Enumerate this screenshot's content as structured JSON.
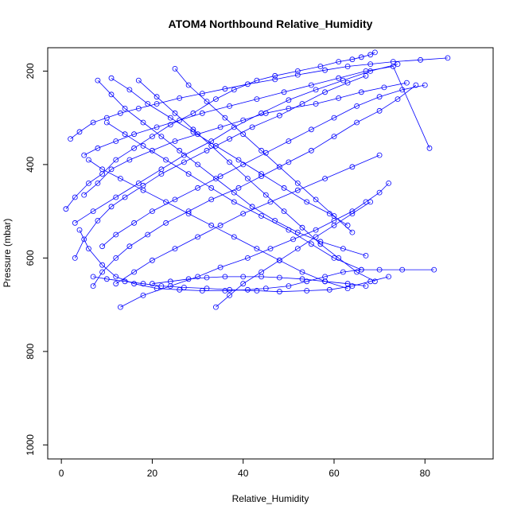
{
  "chart_data": {
    "type": "line",
    "title": "ATOM4 Northbound Relative_Humidity",
    "xlabel": "Relative_Humidity",
    "ylabel": "Pressure (mbar)",
    "xlim": [
      -3,
      95
    ],
    "ylim": [
      1030,
      150
    ],
    "y_reversed": true,
    "x_ticks": [
      0,
      20,
      40,
      60,
      80
    ],
    "y_ticks": [
      200,
      400,
      600,
      800,
      1000
    ],
    "grid": false,
    "legend": "none",
    "marker": "open-circle",
    "series_color": "#0000ff",
    "series": [
      {
        "x": [
          1,
          3,
          6,
          9,
          12,
          16,
          20,
          24,
          29,
          34,
          38,
          43,
          47,
          52,
          57,
          61,
          64,
          66,
          68,
          69
        ],
        "y": [
          495,
          470,
          440,
          420,
          390,
          365,
          340,
          315,
          290,
          260,
          240,
          220,
          210,
          200,
          190,
          180,
          175,
          170,
          165,
          160
        ]
      },
      {
        "x": [
          3,
          5,
          8,
          11,
          14,
          18,
          22,
          27,
          32,
          37,
          42,
          48,
          53,
          58,
          63,
          67
        ],
        "y": [
          600,
          560,
          520,
          490,
          470,
          445,
          420,
          395,
          370,
          345,
          320,
          295,
          270,
          245,
          225,
          210
        ]
      },
      {
        "x": [
          7,
          9,
          12,
          15,
          19,
          23,
          28,
          33,
          39,
          44,
          50,
          55,
          60,
          65,
          70,
          74,
          78
        ],
        "y": [
          660,
          630,
          600,
          575,
          550,
          525,
          500,
          475,
          450,
          425,
          395,
          370,
          340,
          310,
          285,
          260,
          230
        ]
      },
      {
        "x": [
          13,
          18,
          24,
          30,
          35,
          41,
          46,
          51,
          56,
          60,
          64,
          67,
          70,
          72
        ],
        "y": [
          705,
          680,
          660,
          640,
          620,
          600,
          580,
          560,
          540,
          520,
          500,
          480,
          460,
          440
        ]
      },
      {
        "x": [
          2,
          4,
          7,
          10,
          13,
          17,
          21,
          26,
          31,
          36,
          41,
          47,
          52,
          58,
          63,
          68,
          73,
          79,
          85
        ],
        "y": [
          345,
          330,
          310,
          300,
          290,
          280,
          270,
          258,
          248,
          238,
          228,
          218,
          208,
          198,
          190,
          185,
          180,
          176,
          172
        ]
      },
      {
        "x": [
          5,
          8,
          11,
          15,
          20,
          25,
          30,
          35,
          40,
          45,
          50,
          56,
          61,
          66,
          71,
          76
        ],
        "y": [
          465,
          440,
          410,
          390,
          370,
          350,
          335,
          320,
          305,
          290,
          280,
          270,
          258,
          245,
          235,
          225
        ]
      },
      {
        "x": [
          4,
          6,
          9,
          12,
          16,
          21,
          26,
          31,
          36,
          41,
          45,
          50,
          54,
          58,
          62,
          66,
          70,
          75,
          82
        ],
        "y": [
          540,
          580,
          615,
          640,
          655,
          665,
          668,
          670,
          670,
          668,
          665,
          660,
          650,
          640,
          630,
          625,
          625,
          625,
          625
        ]
      },
      {
        "x": [
          7,
          10,
          14,
          18,
          22,
          27,
          32,
          37,
          43,
          48,
          54,
          59,
          64,
          68,
          72
        ],
        "y": [
          640,
          645,
          650,
          655,
          660,
          663,
          665,
          668,
          670,
          672,
          670,
          668,
          660,
          650,
          640
        ]
      },
      {
        "x": [
          8,
          11,
          14,
          18,
          22,
          26,
          30,
          34,
          38,
          42,
          47,
          52,
          57,
          62,
          67
        ],
        "y": [
          220,
          250,
          280,
          310,
          340,
          370,
          400,
          430,
          460,
          490,
          520,
          545,
          565,
          580,
          595
        ]
      },
      {
        "x": [
          11,
          15,
          19,
          24,
          29,
          34,
          39,
          44,
          49,
          54,
          59,
          63
        ],
        "y": [
          215,
          240,
          270,
          300,
          330,
          360,
          390,
          420,
          450,
          480,
          505,
          530
        ]
      },
      {
        "x": [
          17,
          21,
          25,
          29,
          33,
          37,
          41,
          45,
          49,
          53,
          57,
          61,
          65,
          69
        ],
        "y": [
          220,
          255,
          290,
          325,
          360,
          395,
          430,
          465,
          500,
          535,
          570,
          600,
          630,
          650
        ]
      },
      {
        "x": [
          6,
          9,
          13,
          18,
          23,
          28,
          33,
          38,
          43,
          48,
          53,
          58,
          63
        ],
        "y": [
          390,
          410,
          430,
          455,
          480,
          505,
          530,
          555,
          580,
          605,
          630,
          650,
          665
        ]
      },
      {
        "x": [
          10,
          14,
          18,
          23,
          28,
          33,
          38,
          44,
          50,
          55,
          60,
          66
        ],
        "y": [
          310,
          335,
          360,
          390,
          420,
          450,
          480,
          510,
          540,
          570,
          600,
          625
        ]
      },
      {
        "x": [
          3,
          7,
          12,
          17,
          22,
          27,
          33,
          38,
          44,
          50,
          56,
          62,
          68,
          74
        ],
        "y": [
          525,
          500,
          470,
          440,
          410,
          380,
          350,
          320,
          290,
          262,
          240,
          220,
          200,
          185
        ]
      },
      {
        "x": [
          25,
          28,
          32,
          36,
          40,
          44,
          48,
          52,
          56,
          60,
          64
        ],
        "y": [
          195,
          230,
          265,
          300,
          335,
          370,
          405,
          440,
          475,
          510,
          545
        ]
      },
      {
        "x": [
          34,
          37,
          40,
          44,
          48,
          52,
          56,
          60,
          64,
          68
        ],
        "y": [
          705,
          680,
          655,
          630,
          605,
          580,
          555,
          530,
          505,
          480
        ]
      },
      {
        "x": [
          9,
          12,
          16,
          20,
          25,
          30,
          35,
          40,
          45,
          50,
          55,
          60,
          65,
          70,
          75,
          80
        ],
        "y": [
          575,
          550,
          525,
          500,
          475,
          450,
          425,
          400,
          375,
          350,
          325,
          300,
          275,
          255,
          240,
          230
        ]
      },
      {
        "x": [
          5,
          8,
          12,
          16,
          21,
          26,
          31,
          37,
          43,
          49,
          55,
          61,
          67,
          73,
          81
        ],
        "y": [
          380,
          365,
          350,
          335,
          320,
          305,
          290,
          275,
          260,
          245,
          230,
          215,
          200,
          190,
          365
        ]
      },
      {
        "x": [
          12,
          16,
          20,
          25,
          30,
          35,
          40,
          46,
          52,
          58,
          64,
          70
        ],
        "y": [
          655,
          630,
          605,
          580,
          555,
          530,
          505,
          480,
          455,
          430,
          405,
          380
        ]
      },
      {
        "x": [
          20,
          24,
          28,
          32,
          36,
          40,
          44,
          48,
          53,
          58,
          63,
          67
        ],
        "y": [
          655,
          650,
          645,
          642,
          640,
          640,
          640,
          642,
          645,
          650,
          655,
          660
        ]
      }
    ]
  }
}
